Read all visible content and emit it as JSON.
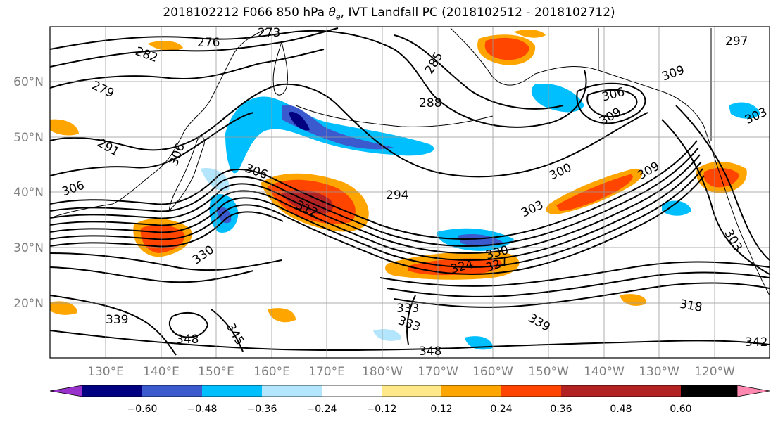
{
  "title": {
    "prefix": "2018102212 F066 850 hPa ",
    "symbol": "θ",
    "subscript": "e",
    "suffix": ", IVT Landfall PC (2018102512 - 2018102712)"
  },
  "map": {
    "lat_labels": [
      "60°N",
      "50°N",
      "40°N",
      "30°N",
      "20°N"
    ],
    "lon_labels": [
      "130°E",
      "140°E",
      "150°E",
      "160°E",
      "170°E",
      "180°W",
      "170°W",
      "160°W",
      "150°W",
      "140°W",
      "130°W",
      "120°W"
    ],
    "contour_labels": [
      "273",
      "276",
      "282",
      "279",
      "285",
      "288",
      "291",
      "294",
      "297",
      "300",
      "303",
      "306",
      "306",
      "309",
      "309",
      "312",
      "330",
      "330",
      "324",
      "327",
      "318",
      "333",
      "333",
      "339",
      "345",
      "348",
      "348",
      "339",
      "342",
      "303",
      "306",
      "303",
      "309",
      "306"
    ],
    "shading_colors": {
      "strong_pos": "#b22222",
      "pos": "#ff4500",
      "mid_pos": "#ffa500",
      "weak_pos": "#ffe88a",
      "weak_neg": "#b3e5fc",
      "mid_neg": "#00bfff",
      "neg": "#3a5acd",
      "strong_neg": "#000080",
      "max_pos": "#ff88b0",
      "min_neg": "#9b30d0"
    }
  },
  "colorbar": {
    "colors": [
      "#9932cc",
      "#000080",
      "#3a5acd",
      "#00bfff",
      "#b3e5fc",
      "#ffffff",
      "#ffe88a",
      "#ffa500",
      "#ff4500",
      "#b22222",
      "#ff88b0"
    ],
    "ticks": [
      "−0.60",
      "−0.48",
      "−0.36",
      "−0.24",
      "−0.12",
      "0.12",
      "0.24",
      "0.36",
      "0.48",
      "0.60"
    ]
  }
}
